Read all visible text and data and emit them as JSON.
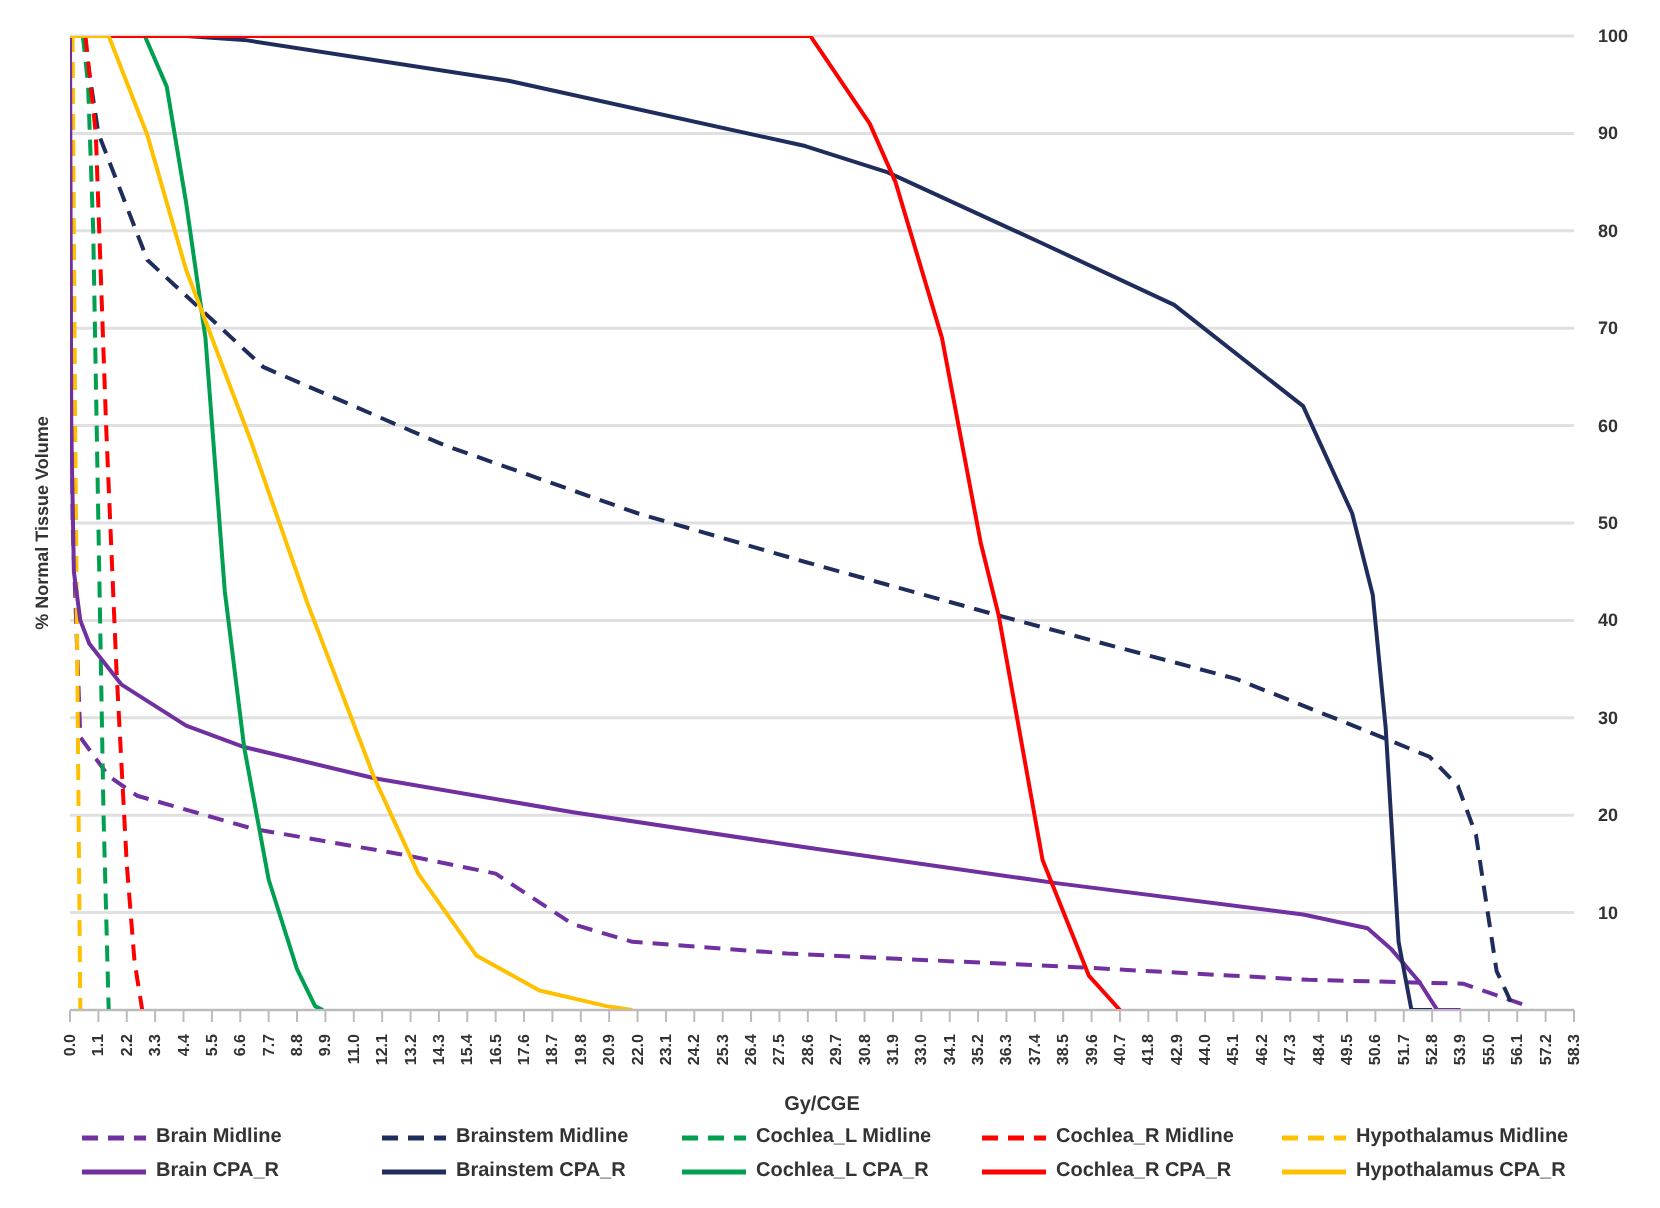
{
  "chart_data": {
    "type": "line",
    "xlabel": "Gy/CGE",
    "ylabel": "% Normal Tissue Volume",
    "xlim": [
      0,
      58.3
    ],
    "ylim": [
      0,
      100
    ],
    "xticks": [
      {
        "value": 0,
        "label": "0.0"
      },
      1.1,
      2.2,
      3.3,
      4.4,
      5.5,
      6.6,
      7.7,
      8.8,
      9.9,
      {
        "value": 11,
        "label": "11.0"
      },
      12.1,
      13.2,
      14.3,
      15.4,
      16.5,
      17.6,
      18.7,
      19.8,
      20.9,
      {
        "value": 22,
        "label": "22.0"
      },
      23.1,
      24.2,
      25.3,
      26.4,
      27.5,
      28.6,
      29.7,
      30.8,
      31.9,
      {
        "value": 33,
        "label": "33.0"
      },
      34.1,
      35.2,
      36.3,
      37.4,
      38.5,
      39.6,
      40.7,
      41.8,
      42.9,
      {
        "value": 44,
        "label": "44.0"
      },
      45.1,
      46.2,
      47.3,
      48.4,
      49.5,
      50.6,
      51.7,
      52.8,
      53.9,
      {
        "value": 55,
        "label": "55.0"
      },
      56.1,
      57.2,
      58.3
    ],
    "yticks": [
      {
        "value": 0,
        "label": null
      },
      10,
      20,
      30,
      40,
      50,
      60,
      70,
      80,
      90,
      100
    ],
    "grid": "y",
    "legend": "bottom",
    "marker": "none",
    "series": [
      {
        "name": "Brain Midline",
        "color": "#7030a0",
        "line_style": "dashed",
        "x": [
          0,
          0.1,
          0.4,
          1.5,
          2.6,
          7.1,
          12.8,
          16.5,
          19.5,
          21.8,
          27.8,
          39,
          48,
          54,
          56.3,
          56.6
        ],
        "values": [
          100,
          50,
          28,
          24,
          22,
          18.6,
          16,
          14,
          8.8,
          7,
          5.8,
          4.4,
          3.1,
          2.7,
          0.6,
          0
        ]
      },
      {
        "name": "Brainstem Midline",
        "color": "#1f2d5c",
        "line_style": "dashed",
        "x": [
          0.5,
          0.7,
          1.1,
          3,
          7.5,
          14.5,
          22,
          28.5,
          36,
          45.2,
          50.3,
          52.7,
          53.8,
          54.5,
          55.3,
          56
        ],
        "values": [
          100,
          97,
          90,
          77,
          66,
          58,
          51,
          46,
          40.5,
          34,
          28.6,
          26,
          23,
          18,
          4,
          0
        ]
      },
      {
        "name": "Cochlea_L Midline",
        "color": "#00a050",
        "line_style": "dashed",
        "x": [
          0.5,
          0.7,
          0.9,
          1.1,
          1.3,
          1.5
        ],
        "values": [
          100,
          95,
          80,
          50,
          20,
          0
        ]
      },
      {
        "name": "Cochlea_R Midline",
        "color": "#ff0000",
        "line_style": "dashed",
        "x": [
          0.6,
          1,
          1.4,
          1.8,
          2.2,
          2.5,
          2.8
        ],
        "values": [
          100,
          90,
          60,
          35,
          15,
          5,
          0
        ]
      },
      {
        "name": "Hypothalamus Midline",
        "color": "#ffc000",
        "line_style": "dashed",
        "x": [
          0.1,
          0.2,
          0.3,
          0.4
        ],
        "values": [
          100,
          60,
          30,
          0
        ]
      },
      {
        "name": "Brain CPA_R",
        "color": "#7030a0",
        "line_style": "solid",
        "x": [
          0,
          0.05,
          0.15,
          0.4,
          0.75,
          2,
          4.5,
          6.75,
          11.8,
          19.5,
          28.5,
          38.3,
          47.8,
          50.3,
          51.2,
          52.3,
          53,
          53.9
        ],
        "values": [
          100,
          60,
          45,
          40,
          37.6,
          33.4,
          29.2,
          27,
          23.8,
          20.3,
          16.7,
          13,
          9.8,
          8.4,
          6.3,
          2.9,
          0,
          0
        ]
      },
      {
        "name": "Brainstem CPA_R",
        "color": "#1f2d5c",
        "line_style": "solid",
        "x": [
          0,
          4.5,
          6.75,
          17,
          28.5,
          31.7,
          37.7,
          42.8,
          47.8,
          49.7,
          50.5,
          51,
          51.5,
          52,
          52.8
        ],
        "values": [
          100,
          100,
          99.6,
          95.4,
          88.7,
          86,
          78.7,
          72.4,
          62,
          51,
          42.6,
          29,
          7,
          0,
          0
        ]
      },
      {
        "name": "Cochlea_L CPA_R",
        "color": "#00a050",
        "line_style": "solid",
        "x": [
          0,
          2.9,
          3.75,
          4.5,
          5.25,
          6,
          6.75,
          7.7,
          8.8,
          9.5,
          9.8
        ],
        "values": [
          100,
          100,
          94.8,
          82.9,
          69,
          43,
          27,
          13.4,
          4.2,
          0.4,
          0
        ]
      },
      {
        "name": "Cochlea_R CPA_R",
        "color": "#ff0000",
        "line_style": "solid",
        "x": [
          0,
          28.7,
          31,
          32,
          33.8,
          35.3,
          36,
          37.7,
          39.5,
          40.7
        ],
        "values": [
          100,
          100,
          91,
          85,
          69,
          48,
          40.5,
          15.4,
          3.5,
          0
        ]
      },
      {
        "name": "Hypothalamus CPA_R",
        "color": "#ffc000",
        "line_style": "solid",
        "x": [
          0,
          1.5,
          3,
          4.5,
          7,
          9.2,
          11.8,
          13.5,
          15.75,
          18.2,
          20.8,
          21.8
        ],
        "values": [
          100,
          100,
          89.8,
          76,
          58.5,
          41.8,
          23.8,
          14,
          5.6,
          2,
          0.4,
          0
        ]
      }
    ]
  }
}
